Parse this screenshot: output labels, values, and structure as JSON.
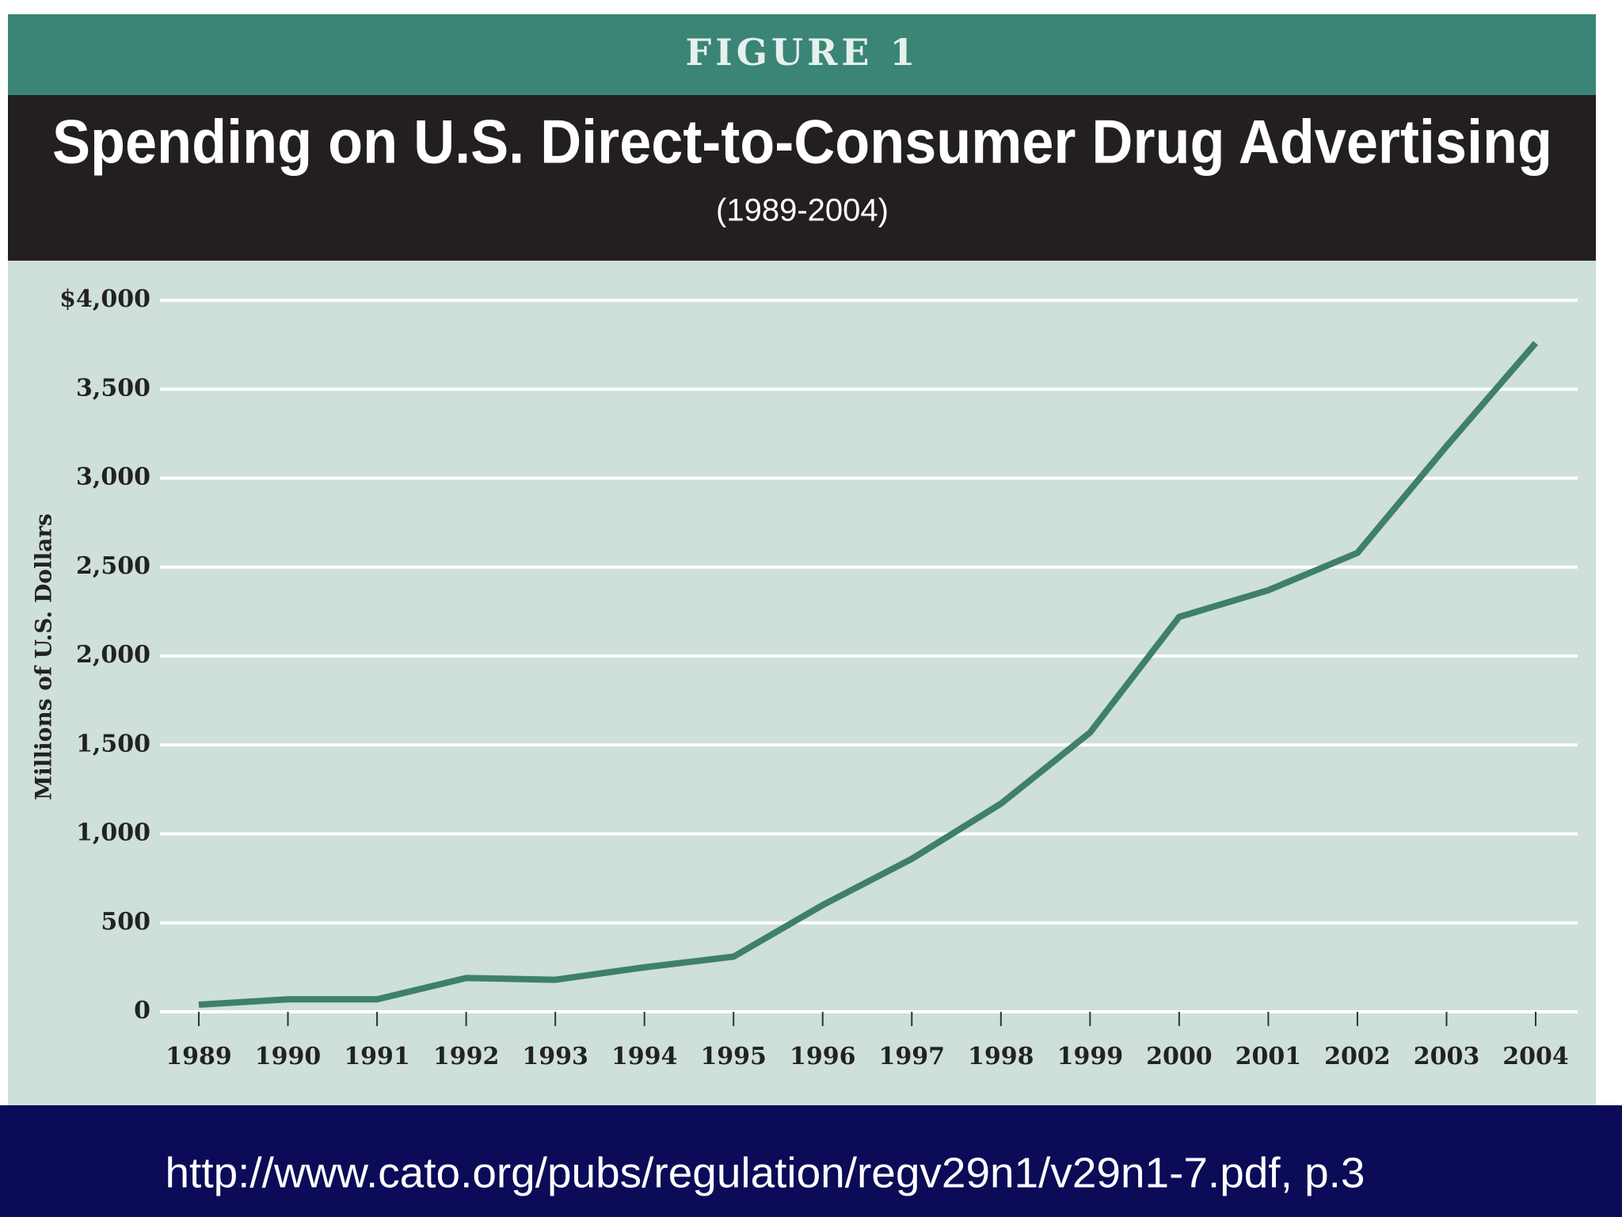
{
  "chart_data": {
    "type": "line",
    "header": "FIGURE 1",
    "title": "Spending on U.S. Direct-to-Consumer Drug Advertising",
    "subtitle": "(1989-2004)",
    "y_label": "Millions of U.S. Dollars",
    "categories": [
      "1989",
      "1990",
      "1991",
      "1992",
      "1993",
      "1994",
      "1995",
      "1996",
      "1997",
      "1998",
      "1999",
      "2000",
      "2001",
      "2002",
      "2003",
      "2004"
    ],
    "values": [
      40,
      70,
      70,
      190,
      180,
      250,
      310,
      600,
      860,
      1170,
      1570,
      2220,
      2370,
      2580,
      3180,
      3760
    ],
    "color": "#3e8068",
    "ylim": [
      0,
      4000
    ],
    "yticks": [
      0,
      500,
      {
        "value": 1000,
        "label": "1,000"
      },
      {
        "value": 1500,
        "label": "1,500"
      },
      {
        "value": 2000,
        "label": "2,000"
      },
      {
        "value": 2500,
        "label": "2,500"
      },
      {
        "value": 3000,
        "label": "3,000"
      },
      {
        "value": 3500,
        "label": "3,500"
      },
      {
        "value": 4000,
        "label": "$4,000"
      }
    ],
    "grid": true,
    "source": "http://www.cato.org/pubs/regulation/regv29n1/v29n1-7.pdf, p.3"
  }
}
